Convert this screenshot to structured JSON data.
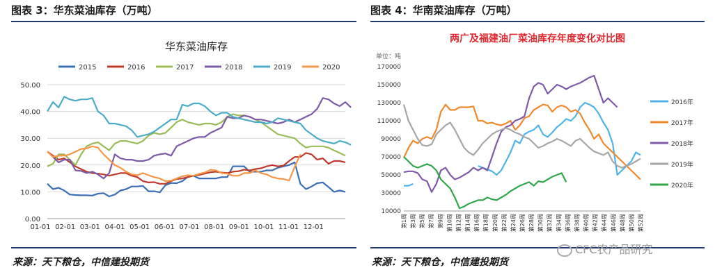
{
  "left_panel": {
    "header": "图表 3：华东菜油库存（万吨）",
    "source": "来源：天下粮仓，中信建投期货"
  },
  "right_panel": {
    "header": "图表 4：华南菜油库存（万吨）",
    "source": "来源：天下粮仓，中信建投期货"
  },
  "watermark": {
    "text": "CFC农产品研究",
    "icon": "wechat-icon"
  },
  "chart_data": [
    {
      "type": "line",
      "title": "华东菜油库存",
      "xlabel": "",
      "ylabel": "",
      "ylim": [
        0,
        50
      ],
      "yticks": [
        "0.00",
        "10.00",
        "20.00",
        "30.00",
        "40.00",
        "50.00"
      ],
      "xticks": [
        "01-01",
        "02-01",
        "03-01",
        "04-01",
        "05-01",
        "06-01",
        "07-01",
        "08-01",
        "09-01",
        "10-01",
        "11-01",
        "12-01"
      ],
      "x_domain": [
        1,
        54
      ],
      "grid": true,
      "legend": "top",
      "series": [
        {
          "name": "2015",
          "color": "#3a6fb7",
          "start": 1,
          "values": [
            13,
            11,
            11.5,
            10.5,
            9,
            8.8,
            8.7,
            8.7,
            8.6,
            9.3,
            9.5,
            8.3,
            9,
            10.5,
            11,
            12,
            12,
            12.2,
            10.2,
            10.2,
            9.8,
            12.5,
            13.3,
            13.2,
            14,
            15.6,
            16,
            15,
            15,
            15,
            15,
            15.5,
            15.5,
            19.5,
            19.5,
            19.5,
            17.5,
            17.5,
            17.5,
            18,
            18,
            19,
            19.5,
            20,
            21,
            13,
            11,
            12,
            13.2,
            13.5,
            11.8,
            10,
            10.5,
            10
          ]
        },
        {
          "name": "2016",
          "color": "#c0392b",
          "start": 1,
          "values": [
            25,
            23.5,
            22,
            22.5,
            21,
            19.5,
            18.5,
            17.5,
            17,
            16.8,
            16.5,
            16,
            16.5,
            17,
            17,
            16,
            15.5,
            14,
            13.5,
            13.6,
            13,
            13,
            14,
            14.8,
            15,
            15.5,
            16,
            16.3,
            16.8,
            17.3,
            17.5,
            17.2,
            17,
            17.5,
            17.7,
            18.3,
            18,
            18.5,
            18.8,
            19.5,
            20,
            19.5,
            19.8,
            21.5,
            23,
            23,
            24.5,
            24,
            22,
            22.5,
            20.5,
            21.5,
            21.5,
            21
          ]
        },
        {
          "name": "2017",
          "color": "#9bbb59",
          "start": 1,
          "values": [
            19.5,
            20.5,
            24,
            24,
            22,
            20,
            24,
            27,
            28,
            28.5,
            27,
            25.5,
            28,
            29,
            29,
            28.5,
            28,
            29,
            31,
            32,
            31.5,
            32,
            34,
            36,
            37,
            36,
            35.5,
            35,
            35.5,
            35.5,
            35,
            36,
            38,
            39,
            38.5,
            38.5,
            38,
            37,
            36,
            34.5,
            33,
            31.5,
            31,
            30.5,
            30,
            28,
            26.5,
            27,
            27,
            27,
            26.5,
            25.5,
            24.5,
            23.5
          ]
        },
        {
          "name": "2018",
          "color": "#7b5aa6",
          "start": 2,
          "values": [
            23,
            21,
            22,
            22,
            18,
            17.8,
            17,
            17.5,
            16.5,
            15,
            17,
            24,
            22.5,
            22,
            22,
            21.5,
            21.5,
            22,
            23.5,
            24,
            24.3,
            23.5,
            27,
            28,
            29,
            30,
            30.5,
            30.5,
            32,
            33,
            34,
            38,
            37.5,
            37.5,
            38.5,
            38,
            37,
            37,
            36.5,
            36,
            35.5,
            36,
            37,
            36,
            37,
            38,
            39,
            41,
            45,
            44.5,
            43,
            42,
            43.5,
            41.5
          ]
        },
        {
          "name": "2019",
          "color": "#4bacc6",
          "start": 1,
          "values": [
            40,
            43.5,
            41.5,
            45.5,
            44.5,
            44,
            44.5,
            44.5,
            45,
            40,
            38.5,
            35.5,
            35.5,
            35,
            34.5,
            33,
            30.5,
            31,
            31.5,
            32.5,
            34,
            35.5,
            37,
            37,
            42.5,
            42,
            43,
            43,
            42,
            40,
            38.5,
            39.5,
            39.5,
            38,
            37.5,
            37,
            36.5,
            36,
            36,
            35.5,
            36,
            37.5,
            37,
            36.5,
            36,
            35.5,
            33,
            31.5,
            30,
            29,
            28.5,
            28,
            29,
            28.5,
            27.5
          ]
        },
        {
          "name": "2020",
          "color": "#f79646",
          "start": 1,
          "values": [
            25,
            23,
            23.5,
            23.5,
            24,
            25,
            26,
            26.2,
            27,
            26.5,
            24,
            22,
            20,
            19,
            17.5,
            16.5,
            16.2,
            17,
            16.2,
            15.5,
            15,
            14,
            14.2,
            15,
            15.8,
            16.2,
            16,
            16.7,
            17.2,
            18.2,
            18,
            17,
            16.8,
            16,
            16,
            17,
            17,
            18,
            17,
            16.5,
            15.5,
            15,
            14.8,
            14.2,
            19.3,
            24
          ]
        }
      ]
    },
    {
      "type": "line",
      "title": "两广及福建油厂菜油库存年度变化对比图",
      "unit_label": "单位：吨",
      "xlabel": "",
      "ylabel": "",
      "ylim": [
        10000,
        170000
      ],
      "yticks": [
        "10000",
        "30000",
        "50000",
        "70000",
        "90000",
        "110000",
        "130000",
        "150000",
        "170000"
      ],
      "xticks": [
        "第1周",
        "第3周",
        "第5周",
        "第7周",
        "第9周",
        "第10周",
        "第12周",
        "第14周",
        "第16周",
        "第18周",
        "第20周",
        "第22周",
        "第24周",
        "第26周",
        "第28周",
        "第30周",
        "第32周",
        "第34周",
        "第36周",
        "第38周",
        "第40周",
        "第42周",
        "第44周",
        "第46周",
        "第48周",
        "第50周",
        "第52周"
      ],
      "x_domain": [
        1,
        52
      ],
      "grid": false,
      "legend": "right",
      "series": [
        {
          "name": "2016年",
          "color": "#4fb3e8",
          "start": 1,
          "values": [
            38000,
            38000,
            40000,
            null,
            null,
            null,
            null,
            null,
            null,
            null,
            null,
            null,
            null,
            null,
            null,
            null,
            60000,
            58000,
            56000,
            54000,
            50000,
            55000,
            65000,
            75000,
            88000,
            85000,
            95000,
            98000,
            100000,
            105000,
            95000,
            92000,
            97000,
            103000,
            107000,
            112000,
            110000,
            115000,
            125000,
            130000,
            128000,
            125000,
            118000,
            108000,
            100000,
            85000,
            50000,
            55000,
            60000,
            65000,
            75000,
            72000
          ]
        },
        {
          "name": "2017年",
          "color": "#f0882e",
          "start": 1,
          "values": [
            69000,
            80000,
            88000,
            85000,
            90000,
            92000,
            90000,
            100000,
            120000,
            128000,
            122000,
            122000,
            125000,
            125000,
            125000,
            126000,
            110000,
            110000,
            107000,
            108000,
            106000,
            105000,
            107000,
            110000,
            100000,
            105000,
            113000,
            115000,
            122000,
            125000,
            128000,
            127000,
            120000,
            125000,
            127000,
            125000,
            120000,
            122000,
            118000,
            108000,
            100000,
            90000,
            95000,
            85000,
            80000,
            75000,
            70000,
            65000,
            60000,
            55000,
            50000,
            45000
          ]
        },
        {
          "name": "2018年",
          "color": "#7f5aa8",
          "start": 1,
          "values": [
            53000,
            54000,
            54000,
            52000,
            45000,
            43000,
            31000,
            40000,
            55000,
            58000,
            50000,
            45000,
            47000,
            50000,
            53000,
            58000,
            55000,
            58000,
            55000,
            70000,
            85000,
            98000,
            103000,
            105000,
            110000,
            112000,
            115000,
            135000,
            148000,
            152000,
            150000,
            140000,
            145000,
            150000,
            148000,
            145000,
            148000,
            150000,
            152000,
            155000,
            158000,
            160000,
            145000,
            130000,
            135000,
            130000,
            125000,
            null,
            null,
            null,
            null,
            null
          ]
        },
        {
          "name": "2019年",
          "color": "#a6a6a6",
          "start": 1,
          "values": [
            128000,
            110000,
            100000,
            90000,
            83000,
            82000,
            84000,
            95000,
            100000,
            105000,
            108000,
            100000,
            90000,
            80000,
            75000,
            72000,
            78000,
            85000,
            90000,
            95000,
            98000,
            100000,
            102000,
            100000,
            97000,
            95000,
            92000,
            90000,
            85000,
            80000,
            82000,
            85000,
            87000,
            90000,
            88000,
            85000,
            82000,
            88000,
            90000,
            85000,
            80000,
            76000,
            74000,
            72000,
            75000,
            65000,
            60000,
            58000,
            60000,
            62000,
            65000,
            68000
          ]
        },
        {
          "name": "2020年",
          "color": "#2fa64a",
          "start": 1,
          "values": [
            70000,
            65000,
            60000,
            58000,
            60000,
            62000,
            60000,
            55000,
            45000,
            40000,
            35000,
            25000,
            13000,
            15000,
            18000,
            20000,
            22000,
            22000,
            25000,
            23000,
            22000,
            25000,
            28000,
            32000,
            35000,
            38000,
            40000,
            42000,
            38000,
            43000,
            42000,
            45000,
            48000,
            50000,
            52000,
            42000,
            null,
            null,
            null,
            null,
            null,
            null,
            null,
            null,
            null,
            null,
            null,
            null,
            null,
            null,
            null,
            null
          ]
        }
      ]
    }
  ]
}
